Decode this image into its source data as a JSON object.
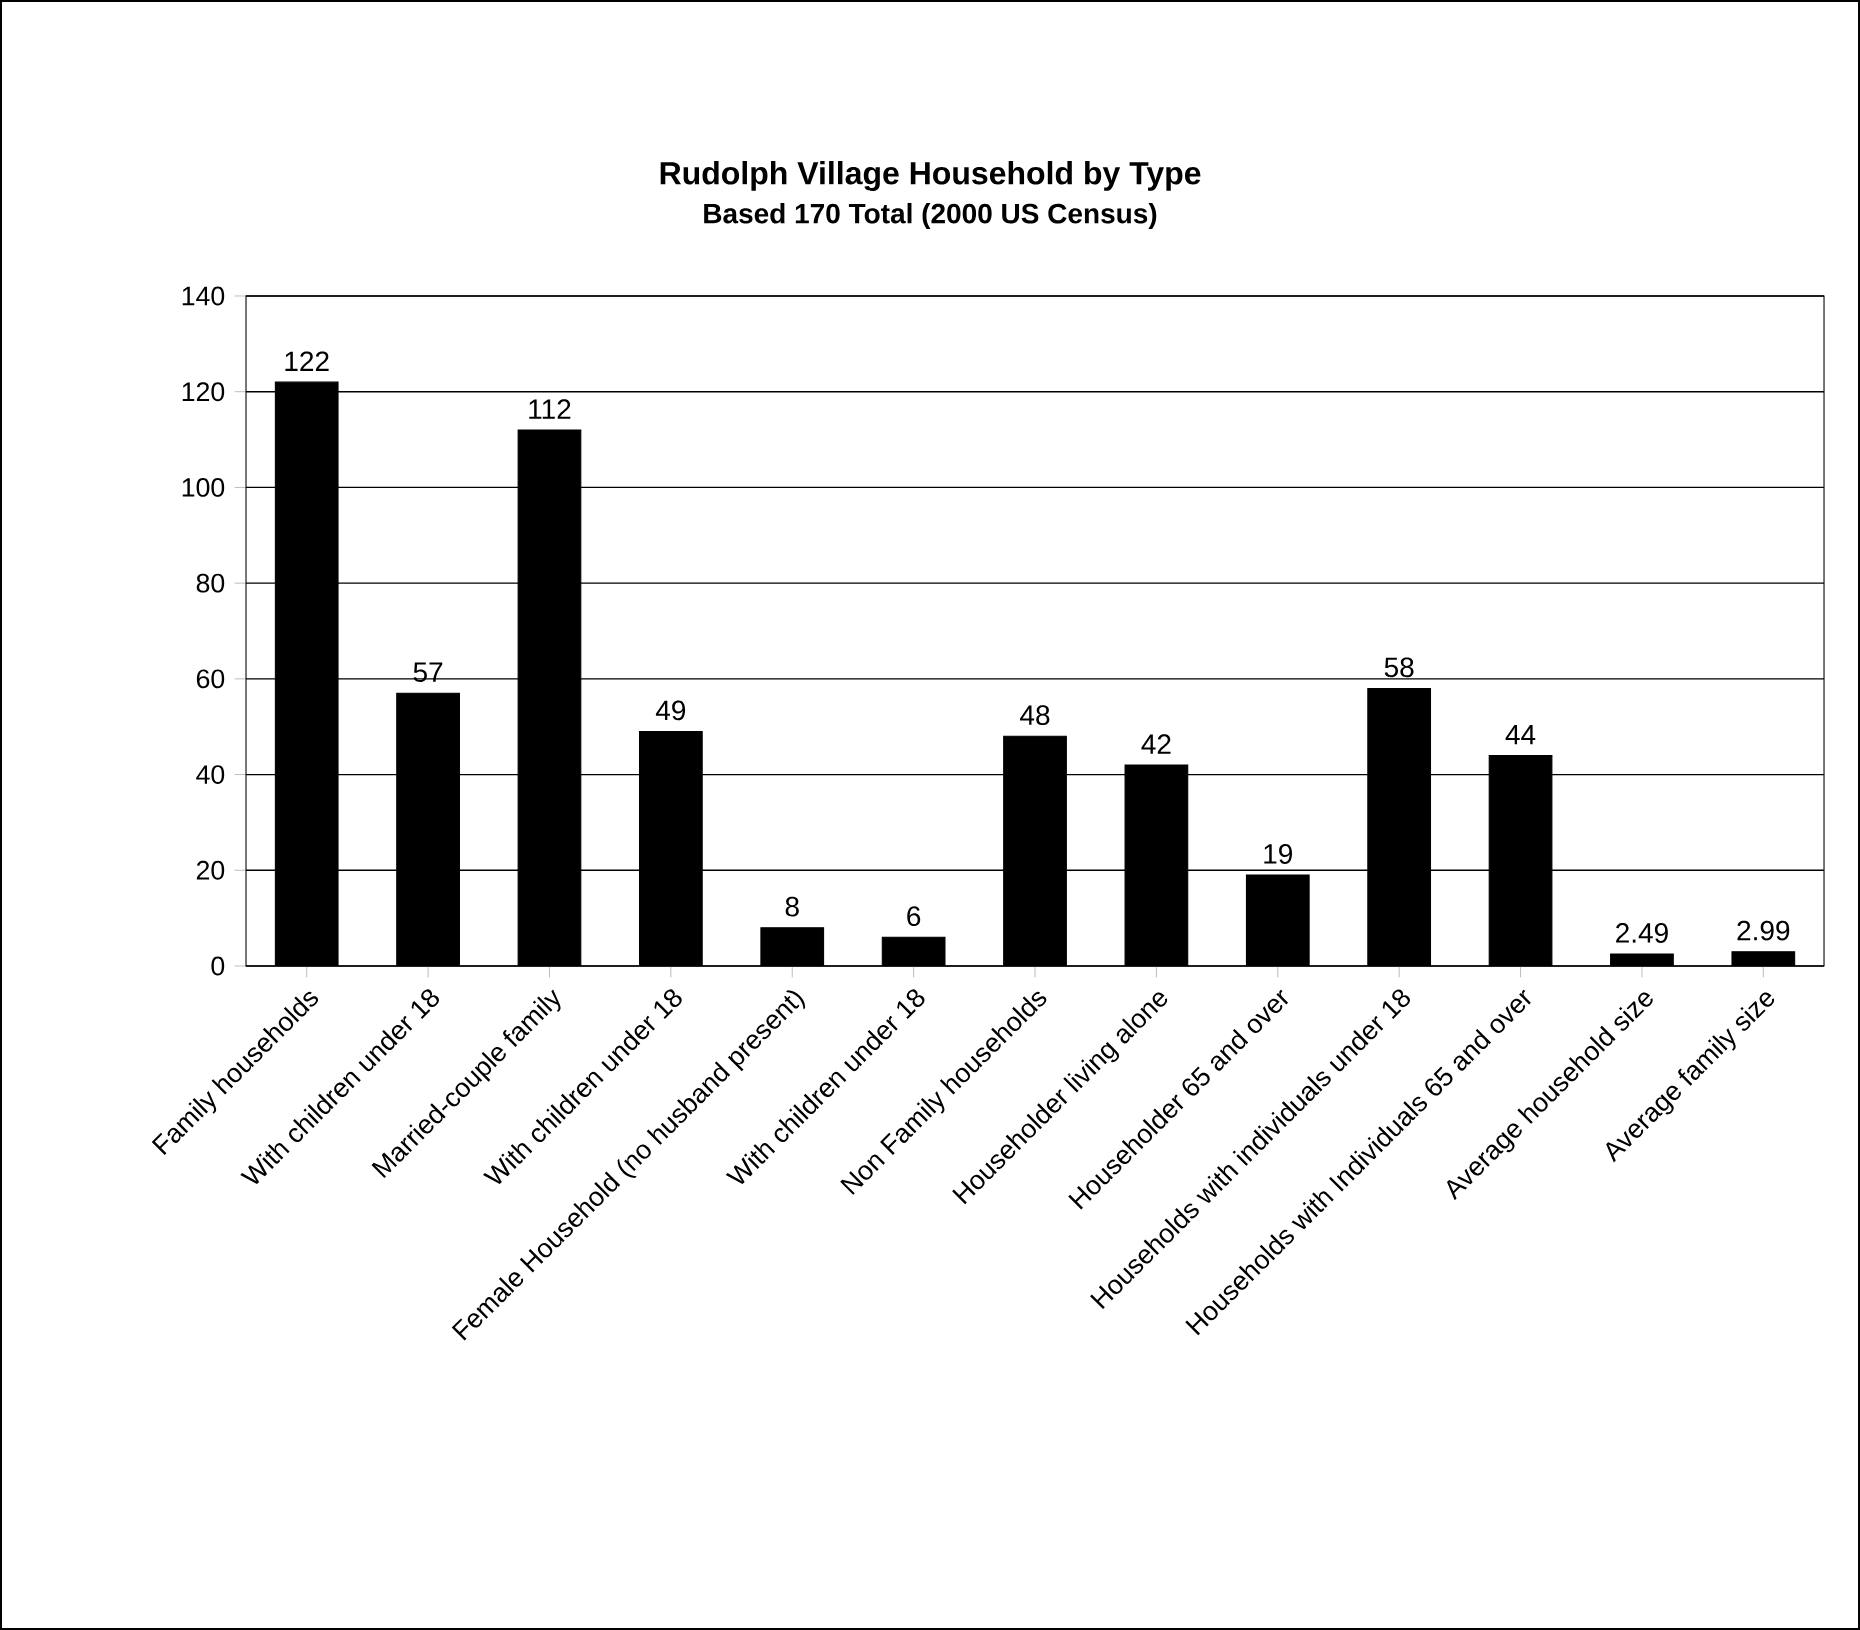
{
  "chart_data": {
    "type": "bar",
    "title": "Rudolph Village Household by Type",
    "subtitle": "Based 170 Total (2000 US Census)",
    "categories": [
      "Family households",
      "With children under 18",
      "Married-couple family",
      "With children under 18",
      "Female Household (no husband present)",
      "With children under 18",
      "Non Family households",
      "Householder living alone",
      "Householder 65 and over",
      "Households with individuals under 18",
      "Households with Individuals 65 and over",
      "Average household size",
      "Average family size"
    ],
    "values": [
      122,
      57,
      112,
      49,
      8,
      6,
      48,
      42,
      19,
      58,
      44,
      2.49,
      2.99
    ],
    "color": "#000000",
    "data_labels": true,
    "grid": "y",
    "ylim": [
      0,
      140
    ],
    "yticks": [
      0,
      20,
      40,
      60,
      80,
      100,
      120,
      140
    ]
  }
}
